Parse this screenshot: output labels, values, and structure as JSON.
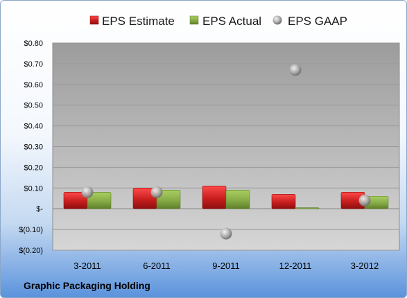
{
  "chart_data": {
    "type": "bar",
    "title": "",
    "categories": [
      "3-2011",
      "6-2011",
      "9-2011",
      "12-2011",
      "3-2012"
    ],
    "series": [
      {
        "name": "EPS Estimate",
        "kind": "bar",
        "color": "#d42a2a",
        "values": [
          0.08,
          0.1,
          0.11,
          0.07,
          0.08
        ]
      },
      {
        "name": "EPS Actual",
        "kind": "bar",
        "color": "#8ab04a",
        "values": [
          0.08,
          0.09,
          0.09,
          0.005,
          0.06
        ]
      },
      {
        "name": "EPS GAAP",
        "kind": "scatter",
        "color": "#a9a9a9",
        "values": [
          0.08,
          0.08,
          -0.12,
          0.67,
          0.04
        ]
      }
    ],
    "ylim": [
      -0.2,
      0.8
    ],
    "yticks": [
      0.8,
      0.7,
      0.6,
      0.5,
      0.4,
      0.3,
      0.2,
      0.1,
      0,
      -0.1,
      -0.2
    ],
    "ytick_labels": [
      "$0.80",
      "$0.70",
      "$0.60",
      "$0.50",
      "$0.40",
      "$0.30",
      "$0.20",
      "$0.10",
      "$-",
      "$(0.10)",
      "$(0.20)"
    ],
    "legend_position": "top",
    "grid": true
  },
  "footer": {
    "company": "Graphic Packaging Holding"
  }
}
